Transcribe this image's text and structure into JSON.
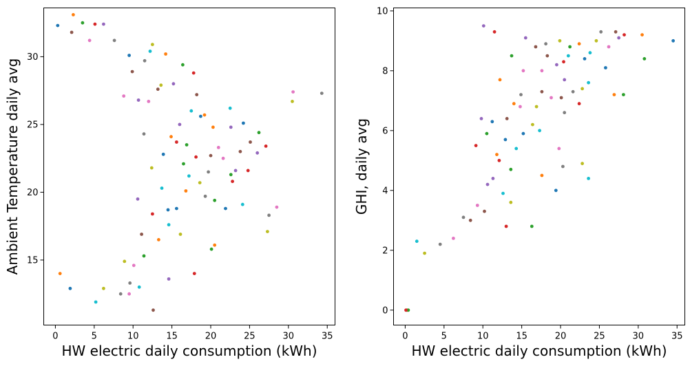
{
  "chart_data": [
    {
      "type": "scatter",
      "xlabel": "HW electric daily consumption (kWh)",
      "ylabel": "Ambient Temperature daily avg",
      "xlim": [
        -1.5,
        36
      ],
      "ylim": [
        10.2,
        33.6
      ],
      "xticks": [
        "0",
        "5",
        "10",
        "15",
        "20",
        "25",
        "30",
        "35"
      ],
      "yticks": [
        "15",
        "20",
        "25",
        "30"
      ],
      "grid": false,
      "legend": "none",
      "colors": [
        "#1f77b4",
        "#ff7f0e",
        "#2ca02c",
        "#d62728",
        "#9467bd",
        "#8c564b",
        "#e377c2",
        "#7f7f7f",
        "#bcbd22",
        "#17becf"
      ],
      "points": [
        [
          0.3,
          32.3
        ],
        [
          2.3,
          33.1
        ],
        [
          3.5,
          32.5
        ],
        [
          5.1,
          32.4
        ],
        [
          6.2,
          32.4
        ],
        [
          2.1,
          31.8
        ],
        [
          4.4,
          31.2
        ],
        [
          7.6,
          31.2
        ],
        [
          12.5,
          30.9
        ],
        [
          12.2,
          30.4
        ],
        [
          9.5,
          30.1
        ],
        [
          14.2,
          30.2
        ],
        [
          16.4,
          29.4
        ],
        [
          17.8,
          28.8
        ],
        [
          15.2,
          28.0
        ],
        [
          18.2,
          27.2
        ],
        [
          30.6,
          27.4
        ],
        [
          34.3,
          27.3
        ],
        [
          30.5,
          26.7
        ],
        [
          22.5,
          26.2
        ],
        [
          24.2,
          25.1
        ],
        [
          19.2,
          25.7
        ],
        [
          26.2,
          24.4
        ],
        [
          27.1,
          23.4
        ],
        [
          22.6,
          24.8
        ],
        [
          23.8,
          23.0
        ],
        [
          28.5,
          18.9
        ],
        [
          27.5,
          18.3
        ],
        [
          27.3,
          17.1
        ],
        [
          24.1,
          19.1
        ],
        [
          21.9,
          18.8
        ],
        [
          20.5,
          16.1
        ],
        [
          20.1,
          15.8
        ],
        [
          17.9,
          14.0
        ],
        [
          14.6,
          13.6
        ],
        [
          12.6,
          11.3
        ],
        [
          9.5,
          12.5
        ],
        [
          8.4,
          12.5
        ],
        [
          6.2,
          12.9
        ],
        [
          5.2,
          11.9
        ],
        [
          1.9,
          12.9
        ],
        [
          0.6,
          14.0
        ],
        [
          22.6,
          21.3
        ],
        [
          22.8,
          20.8
        ],
        [
          23.2,
          21.6
        ],
        [
          20.0,
          22.7
        ],
        [
          21.0,
          23.3
        ],
        [
          19.7,
          21.5
        ],
        [
          18.6,
          20.7
        ],
        [
          17.2,
          21.2
        ],
        [
          18.7,
          25.6
        ],
        [
          20.3,
          24.8
        ],
        [
          16.5,
          22.1
        ],
        [
          15.6,
          23.7
        ],
        [
          16.0,
          25.0
        ],
        [
          13.2,
          27.6
        ],
        [
          12.0,
          26.7
        ],
        [
          11.4,
          24.3
        ],
        [
          12.4,
          21.8
        ],
        [
          13.7,
          20.3
        ],
        [
          14.5,
          18.7
        ],
        [
          13.3,
          16.5
        ],
        [
          11.4,
          15.3
        ],
        [
          12.5,
          18.4
        ],
        [
          10.6,
          19.5
        ],
        [
          11.1,
          16.9
        ],
        [
          10.1,
          14.6
        ],
        [
          9.6,
          13.3
        ],
        [
          8.9,
          14.9
        ],
        [
          10.8,
          13.0
        ],
        [
          15.6,
          18.8
        ],
        [
          16.8,
          20.1
        ],
        [
          20.5,
          19.4
        ],
        [
          24.8,
          21.6
        ],
        [
          26.0,
          22.9
        ],
        [
          25.1,
          23.7
        ],
        [
          21.6,
          22.5
        ],
        [
          19.3,
          19.7
        ],
        [
          16.1,
          16.9
        ],
        [
          14.6,
          17.6
        ],
        [
          13.9,
          22.8
        ],
        [
          14.9,
          24.1
        ],
        [
          16.9,
          23.5
        ],
        [
          18.1,
          22.6
        ],
        [
          10.7,
          26.8
        ],
        [
          9.9,
          28.9
        ],
        [
          8.8,
          27.1
        ],
        [
          11.5,
          29.7
        ],
        [
          13.6,
          27.9
        ],
        [
          17.5,
          26.0
        ]
      ]
    },
    {
      "type": "scatter",
      "xlabel": "HW electric daily consumption (kWh)",
      "ylabel": "GHI, daily avg",
      "xlim": [
        -1.5,
        36
      ],
      "ylim": [
        -0.5,
        10.1
      ],
      "xticks": [
        "0",
        "5",
        "10",
        "15",
        "20",
        "25",
        "30",
        "35"
      ],
      "yticks": [
        "0",
        "2",
        "4",
        "6",
        "8",
        "10"
      ],
      "grid": false,
      "legend": "none",
      "colors": [
        "#1f77b4",
        "#ff7f0e",
        "#2ca02c",
        "#d62728",
        "#9467bd",
        "#8c564b",
        "#e377c2",
        "#7f7f7f",
        "#bcbd22",
        "#17becf"
      ],
      "points": [
        [
          34.5,
          9.0
        ],
        [
          30.5,
          9.2
        ],
        [
          30.8,
          8.4
        ],
        [
          28.2,
          9.2
        ],
        [
          27.5,
          9.1
        ],
        [
          27.1,
          9.3
        ],
        [
          26.2,
          8.8
        ],
        [
          25.2,
          9.3
        ],
        [
          24.6,
          9.0
        ],
        [
          23.8,
          8.6
        ],
        [
          23.1,
          8.4
        ],
        [
          22.4,
          8.9
        ],
        [
          21.2,
          8.8
        ],
        [
          20.4,
          8.3
        ],
        [
          19.5,
          8.2
        ],
        [
          18.3,
          8.5
        ],
        [
          17.6,
          8.0
        ],
        [
          21.6,
          7.3
        ],
        [
          22.8,
          7.4
        ],
        [
          23.6,
          7.6
        ],
        [
          25.8,
          8.1
        ],
        [
          26.9,
          7.2
        ],
        [
          28.1,
          7.2
        ],
        [
          22.4,
          6.9
        ],
        [
          20.5,
          7.7
        ],
        [
          20.1,
          7.1
        ],
        [
          19.8,
          5.4
        ],
        [
          20.3,
          4.8
        ],
        [
          22.8,
          4.9
        ],
        [
          23.6,
          4.4
        ],
        [
          19.4,
          4.0
        ],
        [
          17.6,
          4.5
        ],
        [
          16.3,
          2.8
        ],
        [
          13.0,
          2.8
        ],
        [
          10.6,
          4.2
        ],
        [
          8.4,
          3.0
        ],
        [
          6.2,
          2.4
        ],
        [
          4.5,
          2.2
        ],
        [
          2.5,
          1.9
        ],
        [
          1.5,
          2.3
        ],
        [
          0.2,
          0.0
        ],
        [
          0.3,
          0.0
        ],
        [
          0.4,
          0.0
        ],
        [
          0.1,
          0.0
        ],
        [
          15.5,
          9.1
        ],
        [
          16.8,
          8.8
        ],
        [
          15.2,
          8.0
        ],
        [
          14.9,
          7.2
        ],
        [
          16.4,
          6.2
        ],
        [
          17.3,
          6.0
        ],
        [
          15.2,
          5.9
        ],
        [
          14.0,
          6.9
        ],
        [
          13.6,
          4.7
        ],
        [
          12.1,
          5.0
        ],
        [
          11.3,
          4.4
        ],
        [
          10.2,
          3.3
        ],
        [
          9.3,
          3.5
        ],
        [
          7.5,
          3.1
        ],
        [
          13.6,
          3.6
        ],
        [
          12.6,
          3.9
        ],
        [
          11.2,
          6.3
        ],
        [
          12.2,
          7.7
        ],
        [
          13.7,
          8.5
        ],
        [
          11.5,
          9.3
        ],
        [
          10.1,
          9.5
        ],
        [
          17.6,
          7.3
        ],
        [
          18.8,
          7.1
        ],
        [
          20.5,
          6.6
        ],
        [
          16.9,
          6.8
        ],
        [
          14.3,
          5.4
        ],
        [
          12.9,
          5.7
        ],
        [
          11.8,
          5.2
        ],
        [
          10.5,
          5.9
        ],
        [
          9.1,
          5.5
        ],
        [
          9.8,
          6.4
        ],
        [
          13.1,
          6.4
        ],
        [
          14.8,
          6.8
        ],
        [
          18.1,
          8.9
        ],
        [
          19.9,
          9.0
        ],
        [
          21.0,
          8.5
        ]
      ]
    }
  ]
}
